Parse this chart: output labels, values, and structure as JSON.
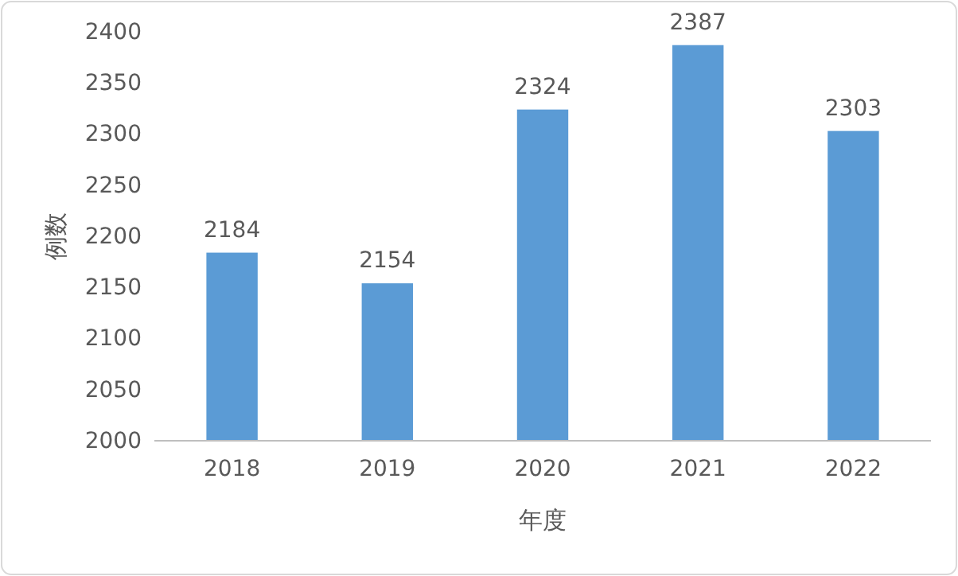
{
  "chart_data": {
    "type": "bar",
    "xlabel": "年度",
    "ylabel": "例数",
    "categories": [
      "2018",
      "2019",
      "2020",
      "2021",
      "2022"
    ],
    "values": [
      2184,
      2154,
      2324,
      2387,
      2303
    ],
    "color": "#5b9bd5",
    "ylim": [
      2000,
      2400
    ],
    "yticks": [
      2000,
      2050,
      2100,
      2150,
      2200,
      2250,
      2300,
      2350,
      2400
    ],
    "grid": false,
    "data_labels": true
  }
}
